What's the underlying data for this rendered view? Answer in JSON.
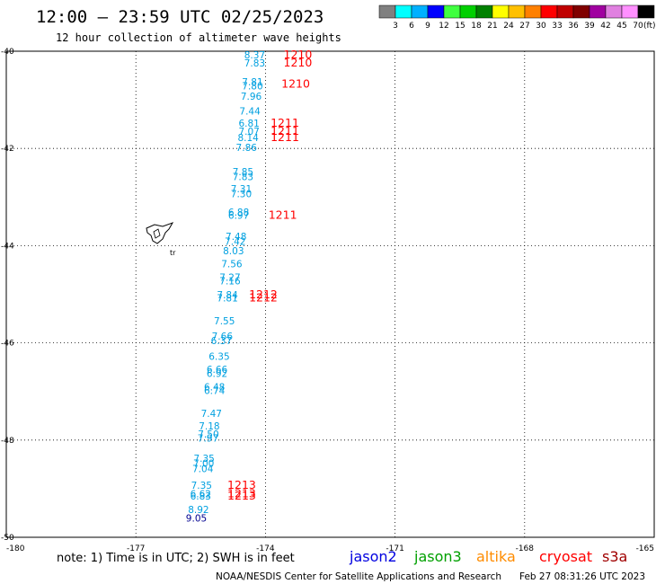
{
  "header": {
    "title": "12:00 – 23:59 UTC 02/25/2023",
    "subtitle": "12 hour collection of altimeter wave heights"
  },
  "colorbar": {
    "unit": "(ft)",
    "swatches": [
      {
        "color": "#808080",
        "label": "3"
      },
      {
        "color": "#00ffff",
        "label": "6"
      },
      {
        "color": "#00b0ff",
        "label": "9"
      },
      {
        "color": "#0000ff",
        "label": "12"
      },
      {
        "color": "#40ff40",
        "label": "15"
      },
      {
        "color": "#00d000",
        "label": "18"
      },
      {
        "color": "#008000",
        "label": "21"
      },
      {
        "color": "#ffff00",
        "label": "24"
      },
      {
        "color": "#ffc000",
        "label": "27"
      },
      {
        "color": "#ff8000",
        "label": "30"
      },
      {
        "color": "#ff0000",
        "label": "33"
      },
      {
        "color": "#c00000",
        "label": "36"
      },
      {
        "color": "#800000",
        "label": "39"
      },
      {
        "color": "#a000a0",
        "label": "42"
      },
      {
        "color": "#e080e0",
        "label": "45"
      },
      {
        "color": "#ff90ff",
        "label": "70"
      },
      {
        "color": "#000000",
        "label": ""
      }
    ]
  },
  "map": {
    "lon_range": [
      -180,
      -165
    ],
    "lat_range": [
      -50,
      -40
    ],
    "lon_ticks": [
      {
        "value": -180,
        "label": "-180"
      },
      {
        "value": -177,
        "label": "-177"
      },
      {
        "value": -174,
        "label": "-174"
      },
      {
        "value": -171,
        "label": "-171"
      },
      {
        "value": -168,
        "label": "-168"
      },
      {
        "value": -165,
        "label": "-165"
      }
    ],
    "lat_ticks": [
      {
        "value": -40,
        "label": "-40"
      },
      {
        "value": -42,
        "label": "-42"
      },
      {
        "value": -44,
        "label": "-44"
      },
      {
        "value": -46,
        "label": "-46"
      },
      {
        "value": -48,
        "label": "-48"
      },
      {
        "value": -50,
        "label": "-50"
      }
    ],
    "island_label": "tr",
    "colors": {
      "jason3": "#00a0e0",
      "jason2_dark": "#000090",
      "time": "#ff0000"
    }
  },
  "observations": [
    {
      "lon": -174.25,
      "lat": -40.15,
      "text": "8.37",
      "color": "#00a0e0"
    },
    {
      "lon": -174.25,
      "lat": -40.31,
      "text": "7.83",
      "color": "#00a0e0"
    },
    {
      "lon": -174.3,
      "lat": -40.7,
      "text": "7.81",
      "color": "#00a0e0"
    },
    {
      "lon": -174.3,
      "lat": -40.79,
      "text": "7.80",
      "color": "#00a0e0"
    },
    {
      "lon": -174.33,
      "lat": -41.0,
      "text": "7.96",
      "color": "#00a0e0"
    },
    {
      "lon": -174.36,
      "lat": -41.3,
      "text": "7.44",
      "color": "#00a0e0"
    },
    {
      "lon": -174.38,
      "lat": -41.55,
      "text": "6.81",
      "color": "#00a0e0"
    },
    {
      "lon": -174.38,
      "lat": -41.72,
      "text": "7.07",
      "color": "#00a0e0"
    },
    {
      "lon": -174.4,
      "lat": -41.85,
      "text": "8.14",
      "color": "#00a0e0"
    },
    {
      "lon": -174.44,
      "lat": -42.05,
      "text": "7.86",
      "color": "#00a0e0"
    },
    {
      "lon": -174.52,
      "lat": -42.55,
      "text": "7.85",
      "color": "#00a0e0"
    },
    {
      "lon": -174.52,
      "lat": -42.65,
      "text": "7.83",
      "color": "#00a0e0"
    },
    {
      "lon": -174.56,
      "lat": -42.9,
      "text": "7.31",
      "color": "#00a0e0"
    },
    {
      "lon": -174.56,
      "lat": -43.0,
      "text": "7.30",
      "color": "#00a0e0"
    },
    {
      "lon": -174.62,
      "lat": -43.38,
      "text": "6.88",
      "color": "#00a0e0"
    },
    {
      "lon": -174.62,
      "lat": -43.45,
      "text": "6.97",
      "color": "#00a0e0"
    },
    {
      "lon": -174.68,
      "lat": -43.88,
      "text": "7.48",
      "color": "#00a0e0"
    },
    {
      "lon": -174.7,
      "lat": -43.98,
      "text": "7.42",
      "color": "#00a0e0"
    },
    {
      "lon": -174.74,
      "lat": -44.18,
      "text": "8.03",
      "color": "#00a0e0"
    },
    {
      "lon": -174.78,
      "lat": -44.45,
      "text": "7.56",
      "color": "#00a0e0"
    },
    {
      "lon": -174.82,
      "lat": -44.72,
      "text": "7.27",
      "color": "#00a0e0"
    },
    {
      "lon": -174.82,
      "lat": -44.8,
      "text": "7.16",
      "color": "#00a0e0"
    },
    {
      "lon": -174.88,
      "lat": -45.08,
      "text": "7.84",
      "color": "#00a0e0"
    },
    {
      "lon": -174.88,
      "lat": -45.15,
      "text": "7.81",
      "color": "#00a0e0"
    },
    {
      "lon": -174.95,
      "lat": -45.62,
      "text": "7.55",
      "color": "#00a0e0"
    },
    {
      "lon": -175.0,
      "lat": -45.93,
      "text": "7.66",
      "color": "#00a0e0"
    },
    {
      "lon": -175.02,
      "lat": -46.03,
      "text": "6.37",
      "color": "#00a0e0"
    },
    {
      "lon": -175.07,
      "lat": -46.35,
      "text": "6.35",
      "color": "#00a0e0"
    },
    {
      "lon": -175.12,
      "lat": -46.62,
      "text": "6.66",
      "color": "#00a0e0"
    },
    {
      "lon": -175.12,
      "lat": -46.7,
      "text": "6.92",
      "color": "#00a0e0"
    },
    {
      "lon": -175.18,
      "lat": -46.98,
      "text": "6.48",
      "color": "#00a0e0"
    },
    {
      "lon": -175.18,
      "lat": -47.05,
      "text": "6.74",
      "color": "#00a0e0"
    },
    {
      "lon": -175.25,
      "lat": -47.52,
      "text": "7.47",
      "color": "#00a0e0"
    },
    {
      "lon": -175.3,
      "lat": -47.78,
      "text": "7.18",
      "color": "#00a0e0"
    },
    {
      "lon": -175.32,
      "lat": -47.95,
      "text": "7.50",
      "color": "#00a0e0"
    },
    {
      "lon": -175.33,
      "lat": -48.03,
      "text": "7.97",
      "color": "#00a0e0"
    },
    {
      "lon": -175.42,
      "lat": -48.45,
      "text": "7.35",
      "color": "#00a0e0"
    },
    {
      "lon": -175.43,
      "lat": -48.55,
      "text": "7.00",
      "color": "#00a0e0"
    },
    {
      "lon": -175.45,
      "lat": -48.66,
      "text": "7.04",
      "color": "#00a0e0"
    },
    {
      "lon": -175.48,
      "lat": -49.0,
      "text": "7.35",
      "color": "#00a0e0"
    },
    {
      "lon": -175.5,
      "lat": -49.18,
      "text": "6.62",
      "color": "#00a0e0"
    },
    {
      "lon": -175.5,
      "lat": -49.22,
      "text": "6.83",
      "color": "#00a0e0"
    },
    {
      "lon": -175.55,
      "lat": -49.5,
      "text": "8.92",
      "color": "#00a0e0"
    },
    {
      "lon": -175.6,
      "lat": -49.68,
      "text": "9.05",
      "color": "#000090"
    }
  ],
  "time_labels": [
    {
      "lon": -173.25,
      "lat": -40.15,
      "text": "1210"
    },
    {
      "lon": -173.25,
      "lat": -40.31,
      "text": "1210"
    },
    {
      "lon": -173.3,
      "lat": -40.75,
      "text": "1210"
    },
    {
      "lon": -173.55,
      "lat": -41.55,
      "text": "1211"
    },
    {
      "lon": -173.55,
      "lat": -41.72,
      "text": "1211"
    },
    {
      "lon": -173.55,
      "lat": -41.85,
      "text": "1211"
    },
    {
      "lon": -173.6,
      "lat": -43.45,
      "text": "1211"
    },
    {
      "lon": -174.05,
      "lat": -45.08,
      "text": "1212"
    },
    {
      "lon": -174.05,
      "lat": -45.15,
      "text": "1212"
    },
    {
      "lon": -174.55,
      "lat": -49.0,
      "text": "1213"
    },
    {
      "lon": -174.55,
      "lat": -49.18,
      "text": "1213"
    },
    {
      "lon": -174.55,
      "lat": -49.22,
      "text": "1213"
    }
  ],
  "footer": {
    "note": "note: 1) Time is in UTC; 2) SWH is in feet",
    "satellites": [
      {
        "name": "jason2",
        "color": "#0000e0"
      },
      {
        "name": "jason3",
        "color": "#00a000"
      },
      {
        "name": "altika",
        "color": "#ff8c00"
      },
      {
        "name": "cryosat",
        "color": "#ff0000"
      },
      {
        "name": "s3a",
        "color": "#a00000"
      }
    ],
    "credit": "NOAA/NESDIS Center for Satellite Applications and Research",
    "timestamp": "Feb 27 08:31:26 UTC 2023"
  }
}
